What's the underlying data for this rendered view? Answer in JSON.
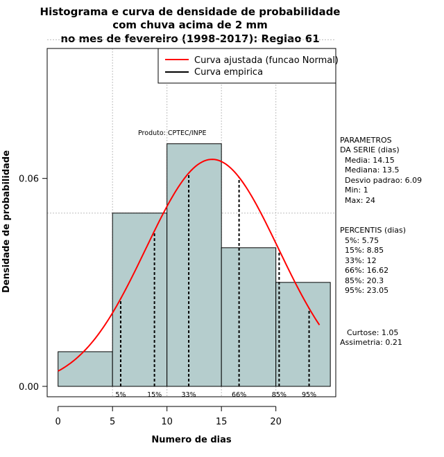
{
  "chart_data": {
    "type": "bar",
    "title": [
      "Histograma e curva de densidade de probabilidade",
      "com chuva acima de 2 mm",
      "no mes de fevereiro (1998-2017): Regiao 61"
    ],
    "xlabel": "Numero de dias",
    "ylabel": "Densidade de probabilidade",
    "xlim": [
      -1,
      25.5
    ],
    "ylim": [
      -0.003,
      0.0975
    ],
    "x_ticks": [
      0,
      5,
      10,
      15,
      20
    ],
    "x_tick_labels": [
      "0",
      "5",
      "10",
      "15",
      "20"
    ],
    "y_ticks": [
      0.0,
      0.06
    ],
    "y_tick_labels": [
      "0.00",
      "0.06"
    ],
    "grid_x": [
      5,
      10,
      15,
      20
    ],
    "grid_y": [
      0.05,
      0.1
    ],
    "bins": [
      {
        "x0": 0,
        "x1": 5,
        "density": 0.01
      },
      {
        "x0": 5,
        "x1": 10,
        "density": 0.05
      },
      {
        "x0": 10,
        "x1": 15,
        "density": 0.07
      },
      {
        "x0": 15,
        "x1": 20,
        "density": 0.04
      },
      {
        "x0": 20,
        "x1": 25,
        "density": 0.03
      }
    ],
    "bar_color": "#b5cdcd",
    "normal_curve": {
      "mean": 14.15,
      "sd": 6.09,
      "x_from": 0,
      "x_to": 24,
      "color": "#ff0000"
    },
    "percentiles": [
      {
        "label": "5%",
        "value": 5.75
      },
      {
        "label": "15%",
        "value": 8.85
      },
      {
        "label": "33%",
        "value": 12
      },
      {
        "label": "66%",
        "value": 16.62
      },
      {
        "label": "85%",
        "value": 20.3
      },
      {
        "label": "95%",
        "value": 23.05
      }
    ],
    "legend": [
      {
        "label": "Curva ajustada (funcao Normal)",
        "color": "#ff0000"
      },
      {
        "label": "Curva empirica",
        "color": "#000000"
      }
    ],
    "legend_position": "top-right",
    "product_label": "Produto: CPTEC/INPE",
    "side_panel": {
      "params_title": [
        "PARAMETROS",
        "DA SERIE (dias)"
      ],
      "params": [
        "Media: 14.15",
        "Mediana: 13.5",
        "Desvio padrao: 6.09",
        "Min: 1",
        "Max: 24"
      ],
      "percentis_title": "PERCENTIS (dias)",
      "percentis": [
        "5%: 5.75",
        "15%: 8.85",
        "33%: 12",
        "66%: 16.62",
        "85%: 20.3",
        "95%: 23.05"
      ],
      "curtose": "Curtose: 1.05",
      "assimetria": "Assimetria: 0.21"
    }
  }
}
